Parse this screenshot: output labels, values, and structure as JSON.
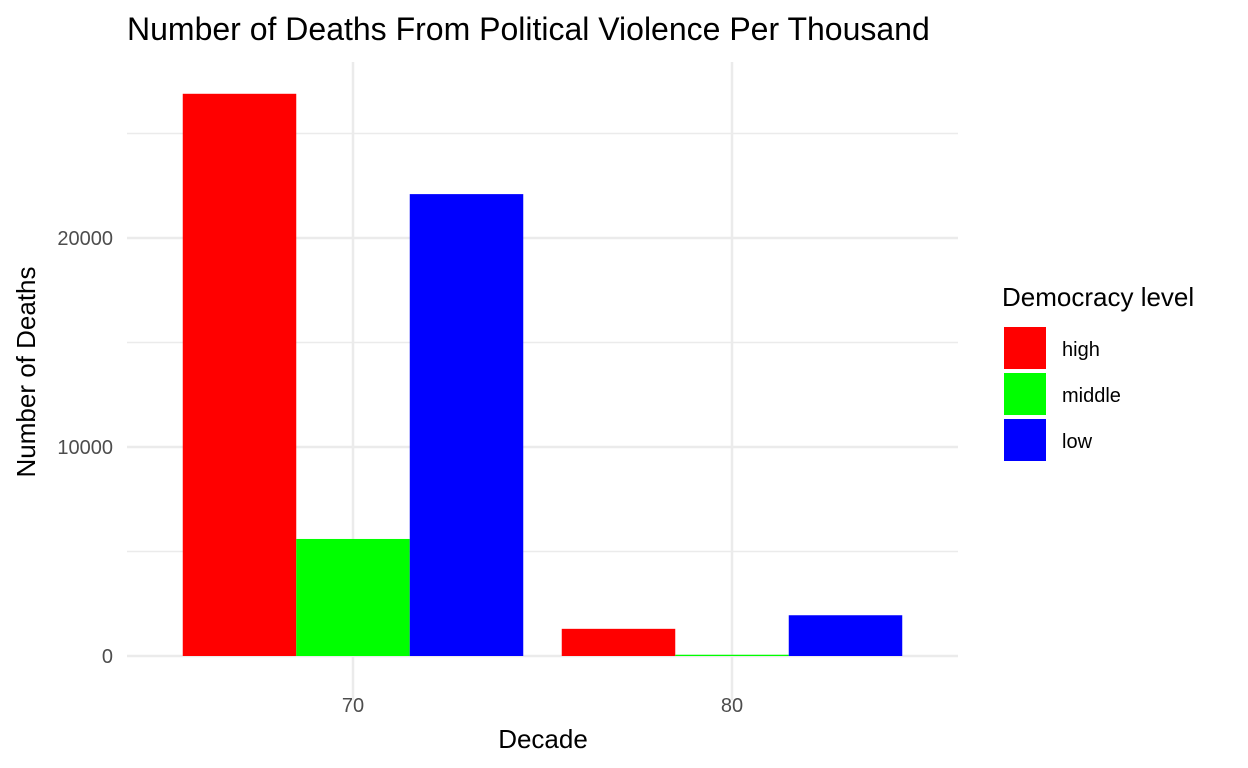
{
  "chart_data": {
    "type": "bar",
    "title": "Number of Deaths From Political Violence Per Thousand",
    "xlabel": "Decade",
    "ylabel": "Number of Deaths",
    "categories": [
      "70",
      "80"
    ],
    "series": [
      {
        "name": "high",
        "color": "#ff0000",
        "values": [
          26900,
          1300
        ]
      },
      {
        "name": "middle",
        "color": "#00ff00",
        "values": [
          5600,
          60
        ]
      },
      {
        "name": "low",
        "color": "#0000ff",
        "values": [
          22100,
          1950
        ]
      }
    ],
    "y_ticks": [
      0,
      10000,
      20000
    ],
    "ylim": [
      0,
      27000
    ],
    "legend": {
      "title": "Democracy level",
      "position": "right"
    },
    "grid": true
  }
}
